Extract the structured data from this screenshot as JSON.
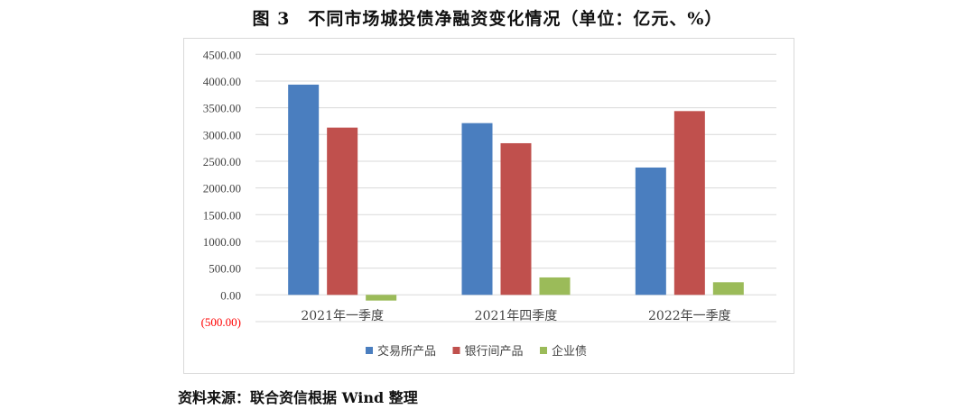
{
  "title": "图 3　不同市场城投债净融资变化情况（单位：亿元、%）",
  "source": "资料来源：联合资信根据 Wind 整理",
  "chart_data": {
    "type": "bar",
    "title": "图 3　不同市场城投债净融资变化情况（单位：亿元、%）",
    "xlabel": "",
    "ylabel": "",
    "categories": [
      "2021年一季度",
      "2021年四季度",
      "2022年一季度"
    ],
    "series": [
      {
        "name": "交易所产品",
        "color": "#4a7ebf",
        "values": [
          3933,
          3213,
          2382
        ]
      },
      {
        "name": "银行间产品",
        "color": "#c0504d",
        "values": [
          3129,
          2837,
          3438
        ]
      },
      {
        "name": "企业债",
        "color": "#9bbb59",
        "values": [
          -107,
          326,
          236
        ]
      }
    ],
    "ylim": [
      -500,
      4500
    ],
    "yticks": [
      4500,
      4000,
      3500,
      3000,
      2500,
      2000,
      1500,
      1000,
      500,
      0,
      -500
    ],
    "ytick_labels": [
      "4500.00",
      "4000.00",
      "3500.00",
      "3000.00",
      "2500.00",
      "2000.00",
      "1500.00",
      "1000.00",
      "500.00",
      "0.00",
      "(500.00)"
    ],
    "negative_label_color": "#ff0000",
    "grid": true,
    "legend_position": "bottom"
  }
}
